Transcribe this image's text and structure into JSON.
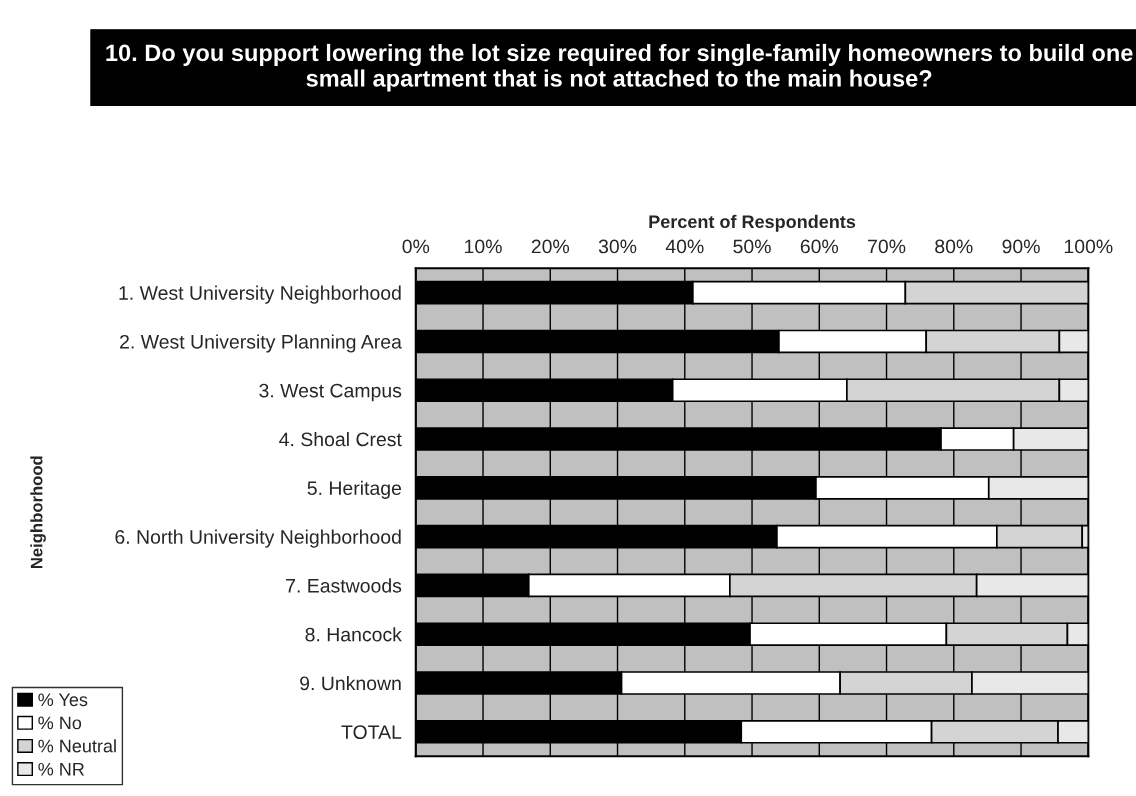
{
  "chart_data": {
    "type": "bar",
    "orientation": "horizontal",
    "stacked": true,
    "title": "10. Do you support lowering the lot size required for single-family homeowners to build one small apartment that is not attached to the main house?",
    "xlabel": "Percent of Respondents",
    "ylabel": "Neighborhood",
    "categories": [
      "1. West University Neighborhood",
      "2. West University Planning Area",
      "3. West Campus",
      "4. Shoal Crest",
      "5. Heritage",
      "6. North University Neighborhood",
      "7. Eastwoods",
      "8. Hancock",
      "9. Unknown",
      "TOTAL"
    ],
    "series": [
      {
        "name": "% Yes",
        "color": "#000000",
        "values": [
          41.2,
          54.0,
          38.2,
          78.1,
          59.5,
          53.7,
          16.8,
          49.7,
          30.6,
          48.4
        ]
      },
      {
        "name": "% No",
        "color": "#ffffff",
        "values": [
          31.6,
          21.9,
          25.9,
          10.8,
          25.7,
          32.7,
          29.9,
          29.2,
          32.5,
          28.3
        ]
      },
      {
        "name": "% Neutral",
        "color": "#d4d4d4",
        "values": [
          27.2,
          19.8,
          31.6,
          null,
          null,
          12.7,
          36.7,
          18.0,
          19.6,
          18.8
        ]
      },
      {
        "name": "% NR",
        "color": "#e8e8e8",
        "values": [
          null,
          4.3,
          4.3,
          11.1,
          14.8,
          0.9,
          16.6,
          3.1,
          17.3,
          4.5
        ]
      }
    ],
    "xlim": [
      0,
      100
    ],
    "xticks": [
      {
        "value": 0,
        "label": "0%"
      },
      {
        "value": 10,
        "label": "10%"
      },
      {
        "value": 20,
        "label": "20%"
      },
      {
        "value": 30,
        "label": "30%"
      },
      {
        "value": 40,
        "label": "40%"
      },
      {
        "value": 50,
        "label": "50%"
      },
      {
        "value": 60,
        "label": "60%"
      },
      {
        "value": 70,
        "label": "70%"
      },
      {
        "value": 80,
        "label": "80%"
      },
      {
        "value": 90,
        "label": "90%"
      },
      {
        "value": 100,
        "label": "100%"
      }
    ],
    "grid": "x",
    "legend": "bottom left"
  }
}
